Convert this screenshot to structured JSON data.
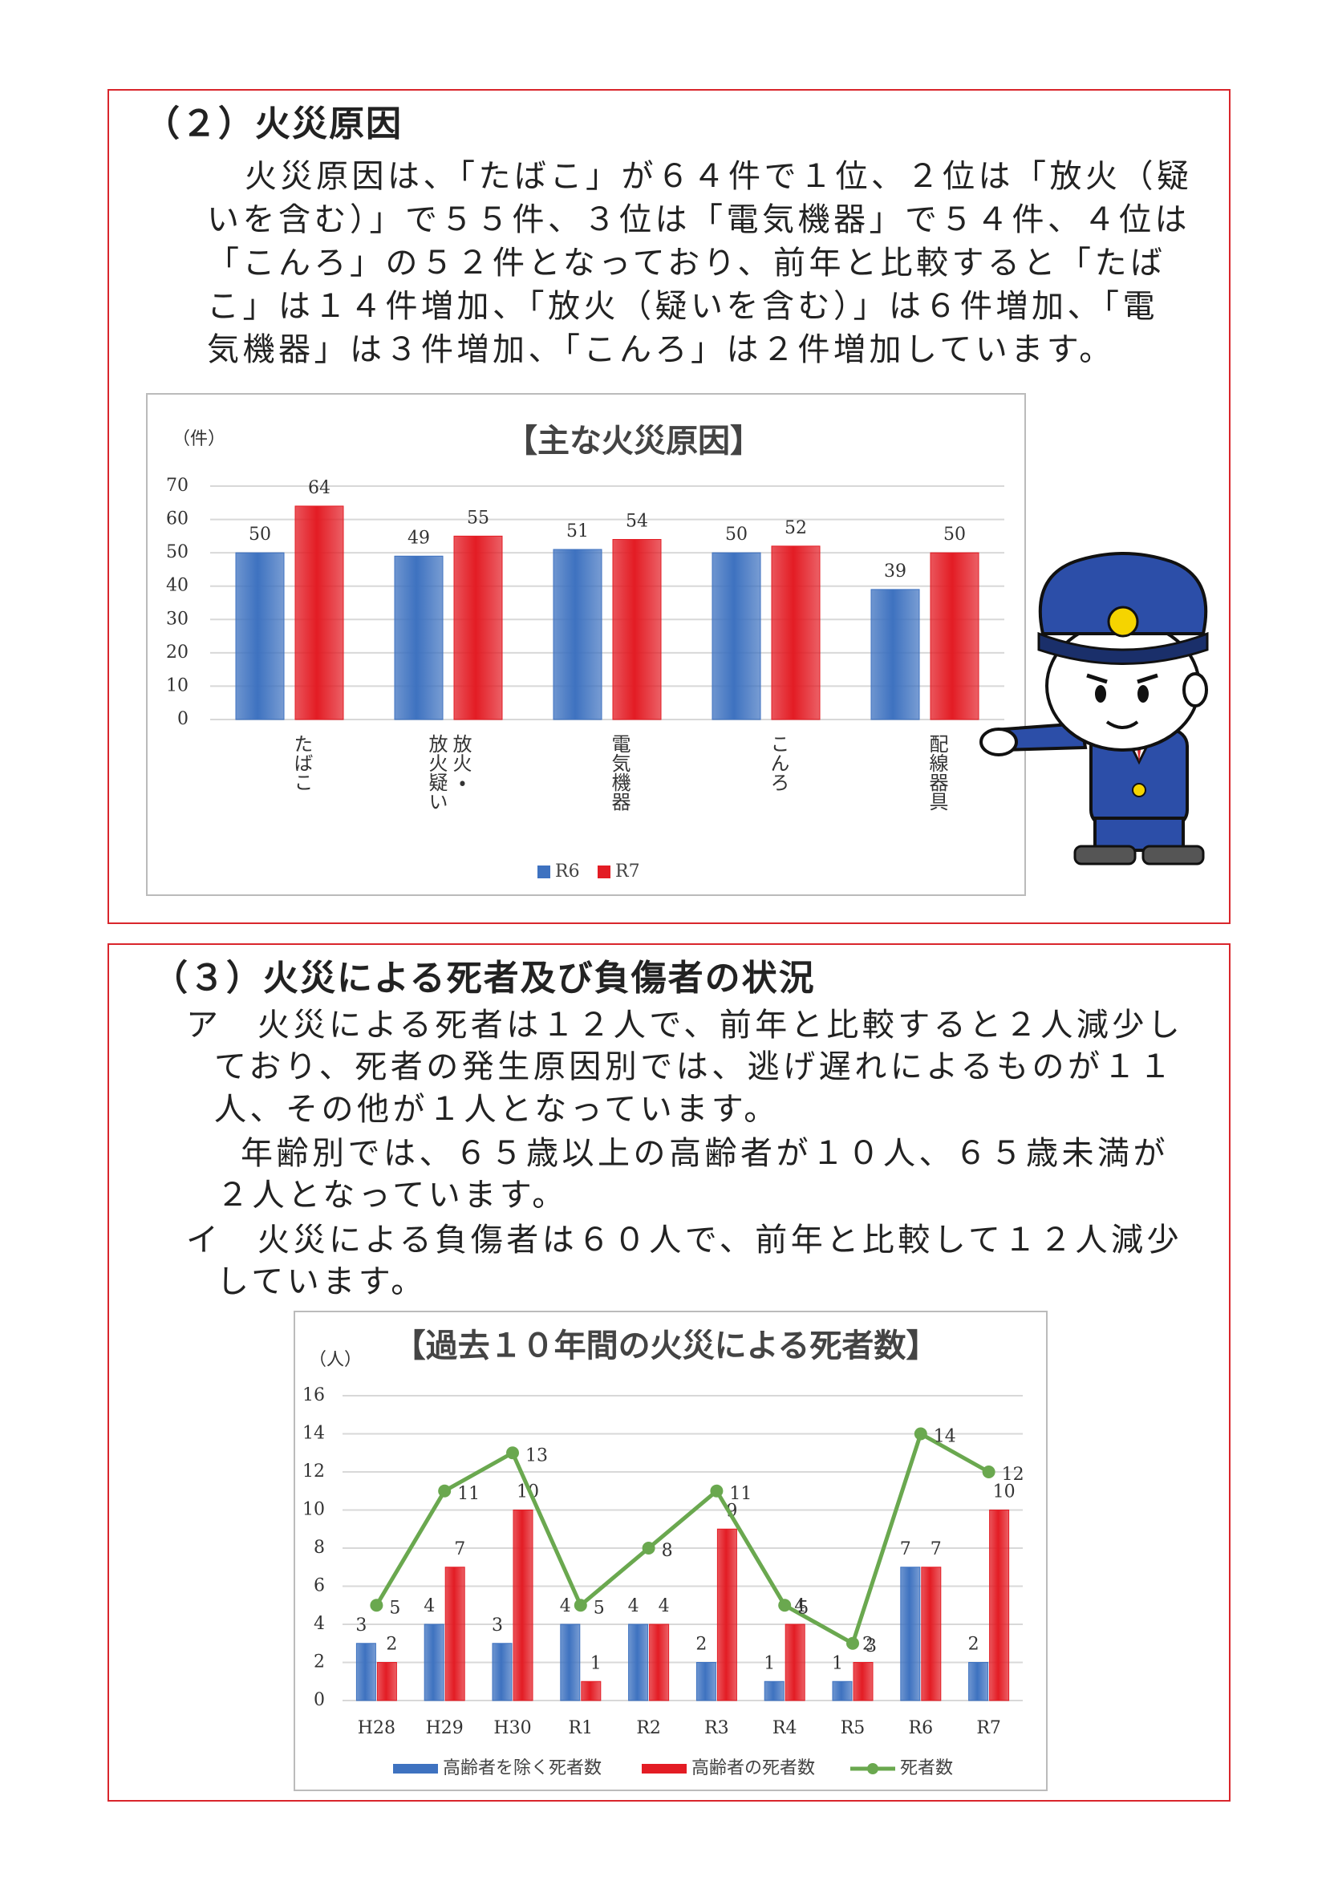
{
  "section1": {
    "heading": "（２）火災原因",
    "lines": [
      "火災原因は、「たばこ」が６４件で１位、２位は「放火（疑",
      "いを含む）」で５５件、３位は「電気機器」で５４件、４位は",
      "「こんろ」の５２件となっており、前年と比較すると「たば",
      "こ」は１４件増加、「放火（疑いを含む）」は６件増加、「電",
      "気機器」は３件増加、「こんろ」は２件増加しています。"
    ]
  },
  "section2": {
    "heading": "（３）火災による死者及び負傷者の状況",
    "lines": [
      "ア　火災による死者は１２人で、前年と比較すると２人減少し",
      "ており、死者の発生原因別では、逃げ遅れによるものが１１",
      "人、その他が１人となっています。",
      "年齢別では、６５歳以上の高齢者が１０人、６５歳未満が",
      "２人となっています。",
      "イ　火災による負傷者は６０人で、前年と比較して１２人減少",
      "しています。"
    ]
  },
  "chart_data": [
    {
      "type": "bar",
      "title": "【主な火災原因】",
      "y_unit": "（件）",
      "categories": [
        "たばこ",
        "放火・\n放火疑い",
        "電気機器",
        "こんろ",
        "配線器具"
      ],
      "series": [
        {
          "name": "R6",
          "color": "#3e72c0",
          "values": [
            50,
            49,
            51,
            50,
            39
          ]
        },
        {
          "name": "R7",
          "color": "#e31c24",
          "values": [
            64,
            55,
            54,
            52,
            50
          ]
        }
      ],
      "ylim": [
        0,
        70
      ],
      "yticks": [
        0,
        10,
        20,
        30,
        40,
        50,
        60,
        70
      ],
      "grid": true,
      "legend": "bottom"
    },
    {
      "type": "bar_line",
      "title": "【過去１０年間の火災による死者数】",
      "y_unit": "（人）",
      "categories": [
        "H28",
        "H29",
        "H30",
        "R1",
        "R2",
        "R3",
        "R4",
        "R5",
        "R6",
        "R7"
      ],
      "series": [
        {
          "name": "高齢者を除く死者数",
          "type": "bar",
          "color": "#3e72c0",
          "values": [
            3,
            4,
            3,
            4,
            4,
            2,
            1,
            1,
            7,
            2
          ]
        },
        {
          "name": "高齢者の死者数",
          "type": "bar",
          "color": "#e31c24",
          "values": [
            2,
            7,
            10,
            1,
            4,
            9,
            4,
            2,
            7,
            10
          ]
        },
        {
          "name": "死者数",
          "type": "line",
          "color": "#6aa84f",
          "values": [
            5,
            11,
            13,
            5,
            8,
            11,
            5,
            3,
            14,
            12
          ]
        }
      ],
      "ylim": [
        0,
        16
      ],
      "yticks": [
        0,
        2,
        4,
        6,
        8,
        10,
        12,
        14,
        16
      ],
      "grid": true,
      "legend": "bottom"
    }
  ]
}
